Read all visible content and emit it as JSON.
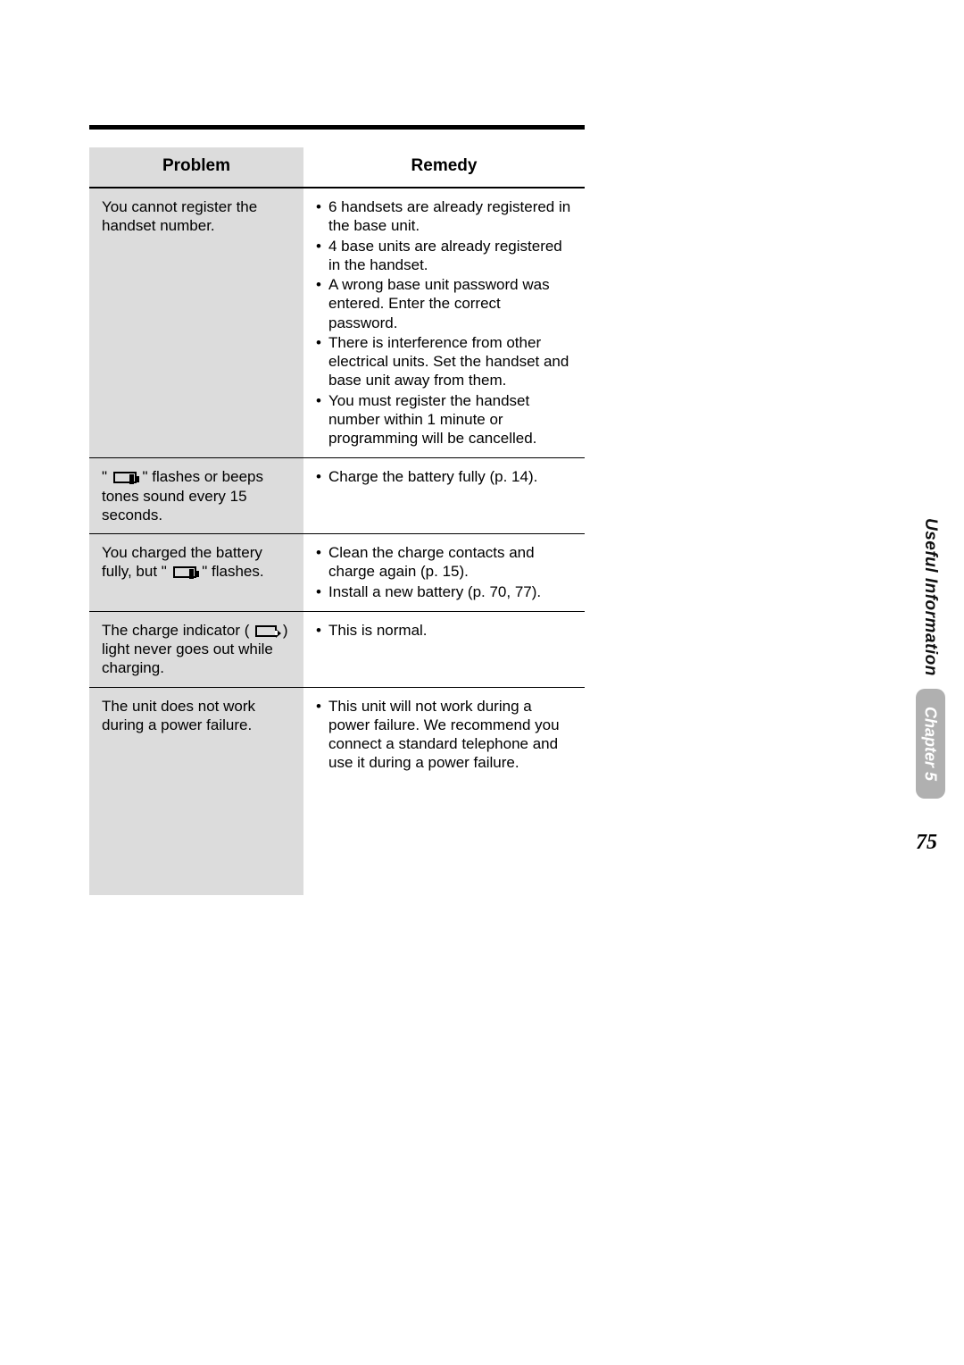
{
  "table": {
    "header": {
      "problem": "Problem",
      "remedy": "Remedy"
    },
    "rows": [
      {
        "problem": "You cannot register the handset number.",
        "remedies": [
          "6 handsets are already registered in the base unit.",
          "4 base units are already registered in the handset.",
          "A wrong base unit password was entered. Enter the correct password.",
          "There is interference from other electrical units. Set the handset and base unit away from them.",
          "You must register the handset number within 1 minute or programming will be cancelled."
        ]
      },
      {
        "problem_prefix": "\" ",
        "problem_mid": " \" flashes or beeps tones sound every 15 seconds.",
        "has_battery_icon": true,
        "remedies": [
          "Charge the battery fully (p. 14)."
        ]
      },
      {
        "problem_prefix": "You charged the battery fully, but \" ",
        "problem_mid": " \" flashes.",
        "has_battery_icon": true,
        "remedies": [
          "Clean the charge contacts and charge again (p. 15).",
          "Install a new battery (p. 70, 77)."
        ]
      },
      {
        "problem_prefix": "The charge indicator ( ",
        "problem_mid": " ) light never goes out while charging.",
        "has_charge_icon": true,
        "remedies": [
          "This is normal."
        ]
      },
      {
        "problem": "The unit does not work during a power failure.",
        "remedies": [
          "This unit will not work during a power failure. We recommend you connect a standard telephone and use it during a power failure."
        ]
      }
    ]
  },
  "sidebar": {
    "label": "Useful Information",
    "chapter": "Chapter 5"
  },
  "page_number": "75",
  "colors": {
    "shaded_bg": "#dcdcdc",
    "text": "#000000",
    "tab_bg": "#b0b0b0",
    "tab_text": "#ffffff"
  },
  "typography": {
    "body_fontsize": 17,
    "header_fontsize": 19,
    "page_num_fontsize": 24
  }
}
